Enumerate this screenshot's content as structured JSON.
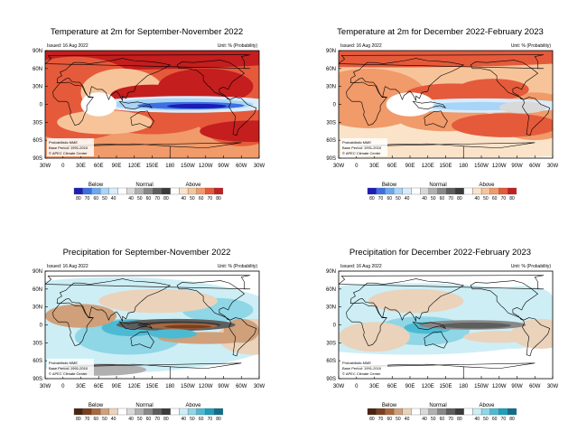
{
  "panels": [
    {
      "title": "Temperature at 2m for September-November 2022",
      "issued": "Issued: 16 Aug 2022",
      "unit": "Unit: % (Probability)",
      "credits": [
        "Probabilistic MME",
        "Base Period: 1991-2010",
        "© APEC Climate Center"
      ],
      "kind": "temp",
      "legend": {
        "below": "Below",
        "normal": "Normal",
        "above": "Above"
      },
      "legend_colors": [
        "#1c1cb8",
        "#3d6fe0",
        "#6aa8f0",
        "#a8d4f8",
        "#d8ecfb",
        "#ffffff",
        "#d9d9d9",
        "#b0b0b0",
        "#888888",
        "#5e5e5e",
        "#3b3b3b",
        "#ffffff",
        "#fbe3c9",
        "#f7c49a",
        "#f19a6a",
        "#e55a3b",
        "#c41e1e"
      ],
      "legend_ticks": [
        "80",
        "70",
        "60",
        "50",
        "40",
        "40",
        "50",
        "60",
        "70",
        "80",
        "40",
        "50",
        "60",
        "70",
        "80"
      ]
    },
    {
      "title": "Temperature at 2m for December 2022-February 2023",
      "issued": "Issued: 16 Aug 2022",
      "unit": "Unit: % (Probability)",
      "credits": [
        "Probabilistic MME",
        "Base Period: 1991-2010",
        "© APEC Climate Center"
      ],
      "kind": "temp2",
      "legend": {
        "below": "Below",
        "normal": "Normal",
        "above": "Above"
      },
      "legend_colors": [
        "#1c1cb8",
        "#3d6fe0",
        "#6aa8f0",
        "#a8d4f8",
        "#d8ecfb",
        "#ffffff",
        "#d9d9d9",
        "#b0b0b0",
        "#888888",
        "#5e5e5e",
        "#3b3b3b",
        "#ffffff",
        "#fbe3c9",
        "#f7c49a",
        "#f19a6a",
        "#e55a3b",
        "#c41e1e"
      ],
      "legend_ticks": [
        "80",
        "70",
        "60",
        "50",
        "40",
        "40",
        "50",
        "60",
        "70",
        "80",
        "40",
        "50",
        "60",
        "70",
        "80"
      ]
    },
    {
      "title": "Precipitation for September-November 2022",
      "issued": "Issued: 16 Aug 2022",
      "unit": "Unit: % (Probability)",
      "credits": [
        "Probabilistic MME",
        "Base Period: 1991-2010",
        "© APEC Climate Center"
      ],
      "kind": "precip",
      "legend": {
        "below": "Below",
        "normal": "Normal",
        "above": "Above"
      },
      "legend_colors": [
        "#4a2410",
        "#7a3f1f",
        "#a8683f",
        "#cfa07a",
        "#ead2bb",
        "#ffffff",
        "#d9d9d9",
        "#b0b0b0",
        "#888888",
        "#5e5e5e",
        "#3b3b3b",
        "#ffffff",
        "#cdeef5",
        "#8fd6e6",
        "#4dbad3",
        "#1e9fbc",
        "#0e6f8c"
      ],
      "legend_ticks": [
        "80",
        "70",
        "60",
        "50",
        "40",
        "40",
        "50",
        "60",
        "70",
        "80",
        "40",
        "50",
        "60",
        "70",
        "80"
      ]
    },
    {
      "title": "Precipitation for December 2022-February 2023",
      "issued": "Issued: 16 Aug 2022",
      "unit": "Unit: % (Probability)",
      "credits": [
        "Probabilistic MME",
        "Base Period: 1991-2010",
        "© APEC Climate Center"
      ],
      "kind": "precip2",
      "legend": {
        "below": "Below",
        "normal": "Normal",
        "above": "Above"
      },
      "legend_colors": [
        "#4a2410",
        "#7a3f1f",
        "#a8683f",
        "#cfa07a",
        "#ead2bb",
        "#ffffff",
        "#d9d9d9",
        "#b0b0b0",
        "#888888",
        "#5e5e5e",
        "#3b3b3b",
        "#ffffff",
        "#cdeef5",
        "#8fd6e6",
        "#4dbad3",
        "#1e9fbc",
        "#0e6f8c"
      ],
      "legend_ticks": [
        "80",
        "70",
        "60",
        "50",
        "40",
        "40",
        "50",
        "60",
        "70",
        "80",
        "40",
        "50",
        "60",
        "70",
        "80"
      ]
    }
  ],
  "lat_labels": [
    "90N",
    "60N",
    "30N",
    "0",
    "30S",
    "60S",
    "90S"
  ],
  "lon_labels": [
    "30W",
    "0",
    "30E",
    "60E",
    "90E",
    "120E",
    "150E",
    "180",
    "150W",
    "120W",
    "90W",
    "60W",
    "30W"
  ]
}
